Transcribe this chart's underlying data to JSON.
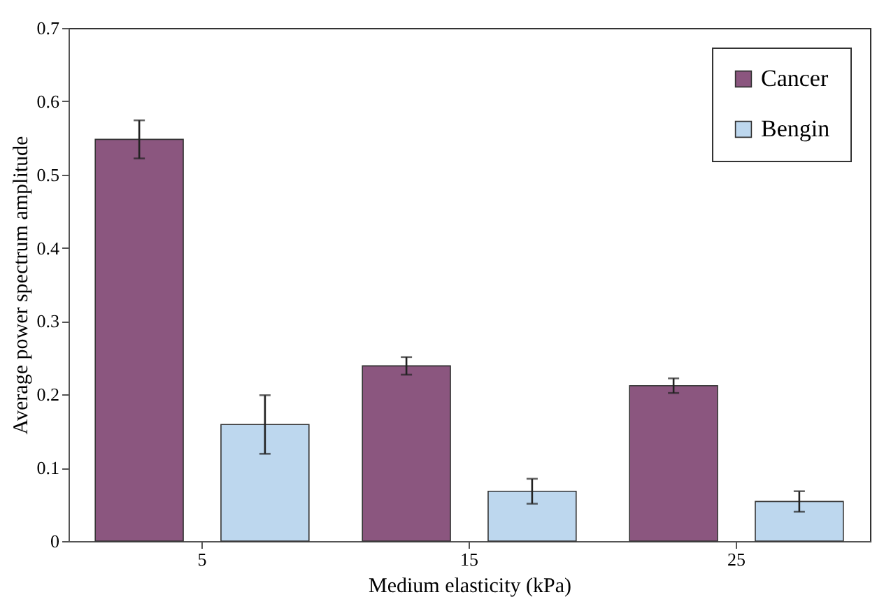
{
  "chart_data": {
    "type": "bar",
    "xlabel": "Medium elasticity (kPa)",
    "ylabel": "Average power spectrum amplitude",
    "categories": [
      "5",
      "15",
      "25"
    ],
    "series": [
      {
        "name": "Cancer",
        "color": "#8b567f",
        "values": [
          0.548,
          0.239,
          0.212
        ],
        "errors": [
          0.026,
          0.012,
          0.01
        ]
      },
      {
        "name": "Bengin",
        "color": "#bdd7ee",
        "values": [
          0.159,
          0.068,
          0.054
        ],
        "errors": [
          0.04,
          0.017,
          0.014
        ]
      }
    ],
    "ylim": [
      0,
      0.7
    ],
    "yticks": [
      0,
      0.1,
      0.2,
      0.3,
      0.4,
      0.5,
      0.6,
      0.7
    ],
    "grid": false,
    "legend": "top right"
  }
}
